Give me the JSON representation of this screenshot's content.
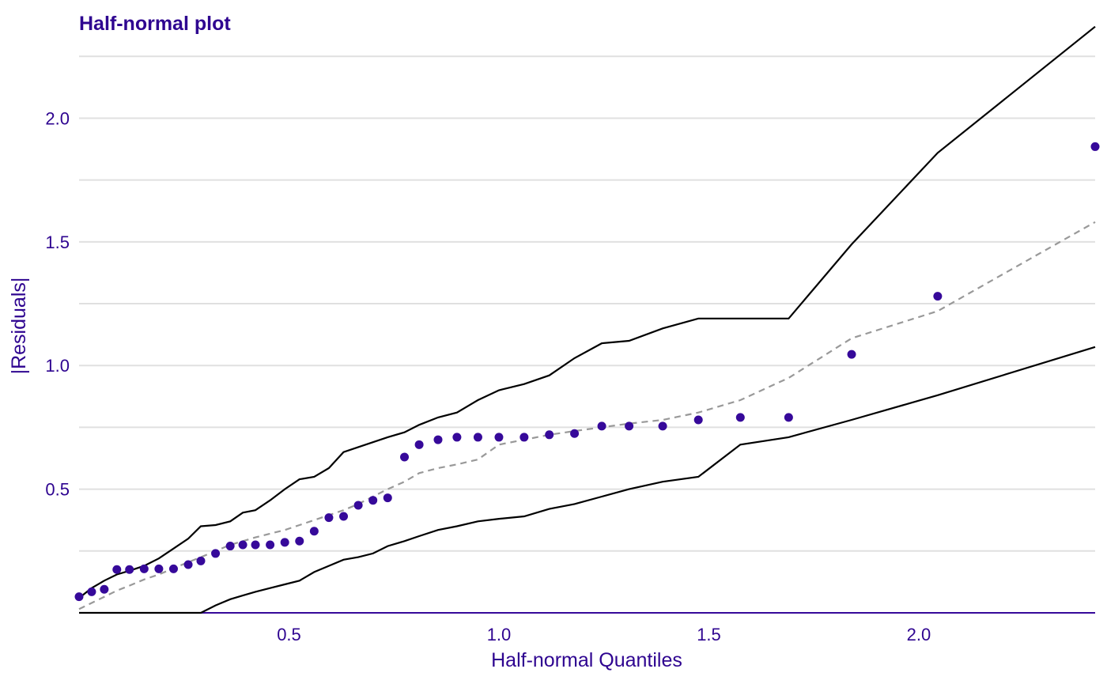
{
  "chart_data": {
    "type": "scatter",
    "title": "Half-normal plot",
    "xlabel": "Half-normal Quantiles",
    "ylabel": "|Residuals|",
    "xlim": [
      0.0,
      2.42
    ],
    "ylim": [
      0.0,
      2.35
    ],
    "x_ticks": [
      0.5,
      1.0,
      1.5,
      2.0
    ],
    "x_tick_labels": [
      "0.5",
      "1.0",
      "1.5",
      "2.0"
    ],
    "y_ticks": [
      0.5,
      1.0,
      1.5,
      2.0
    ],
    "y_tick_labels": [
      "0.5",
      "1.0",
      "1.5",
      "2.0"
    ],
    "y_minor_gridlines": [
      0.25,
      0.75,
      1.25,
      1.75,
      2.25
    ],
    "grid": true,
    "colors": {
      "title": "#2E0490",
      "points": "#36099A",
      "envelope": "#000000",
      "median": "#999999",
      "grid": "#e0e0e0",
      "axis_text": "#2E0490"
    },
    "series": [
      {
        "kind": "points",
        "x": [
          0.0,
          0.03,
          0.06,
          0.09,
          0.12,
          0.155,
          0.19,
          0.225,
          0.26,
          0.29,
          0.325,
          0.36,
          0.39,
          0.42,
          0.455,
          0.49,
          0.525,
          0.56,
          0.595,
          0.63,
          0.665,
          0.7,
          0.735,
          0.775,
          0.81,
          0.855,
          0.9,
          0.95,
          1.0,
          1.06,
          1.12,
          1.18,
          1.245,
          1.31,
          1.39,
          1.475,
          1.575,
          1.69,
          1.84,
          2.045,
          2.42
        ],
        "y": [
          0.065,
          0.085,
          0.095,
          0.175,
          0.175,
          0.178,
          0.178,
          0.178,
          0.195,
          0.21,
          0.24,
          0.27,
          0.275,
          0.275,
          0.275,
          0.285,
          0.29,
          0.33,
          0.385,
          0.39,
          0.435,
          0.455,
          0.465,
          0.63,
          0.68,
          0.7,
          0.71,
          0.71,
          0.71,
          0.71,
          0.72,
          0.725,
          0.755,
          0.755,
          0.755,
          0.78,
          0.79,
          0.79,
          1.045,
          1.28,
          1.885
        ]
      },
      {
        "kind": "upper-envelope",
        "x": [
          0.0,
          0.03,
          0.06,
          0.09,
          0.12,
          0.155,
          0.19,
          0.225,
          0.26,
          0.29,
          0.325,
          0.36,
          0.39,
          0.42,
          0.455,
          0.49,
          0.525,
          0.56,
          0.595,
          0.63,
          0.665,
          0.7,
          0.735,
          0.775,
          0.81,
          0.855,
          0.9,
          0.95,
          1.0,
          1.06,
          1.12,
          1.18,
          1.245,
          1.31,
          1.39,
          1.475,
          1.575,
          1.69,
          1.84,
          2.045,
          2.42
        ],
        "y": [
          0.06,
          0.1,
          0.13,
          0.155,
          0.17,
          0.19,
          0.22,
          0.26,
          0.3,
          0.35,
          0.355,
          0.37,
          0.405,
          0.415,
          0.455,
          0.5,
          0.54,
          0.55,
          0.585,
          0.65,
          0.67,
          0.69,
          0.71,
          0.73,
          0.76,
          0.79,
          0.81,
          0.86,
          0.9,
          0.925,
          0.96,
          1.03,
          1.09,
          1.1,
          1.15,
          1.19,
          1.19,
          1.19,
          1.49,
          1.86,
          2.37
        ]
      },
      {
        "kind": "median",
        "x": [
          0.0,
          0.03,
          0.06,
          0.09,
          0.12,
          0.155,
          0.19,
          0.225,
          0.26,
          0.29,
          0.325,
          0.36,
          0.39,
          0.42,
          0.455,
          0.49,
          0.525,
          0.56,
          0.595,
          0.63,
          0.665,
          0.7,
          0.735,
          0.775,
          0.81,
          0.855,
          0.9,
          0.95,
          1.0,
          1.06,
          1.12,
          1.18,
          1.245,
          1.31,
          1.39,
          1.475,
          1.575,
          1.69,
          1.84,
          2.045,
          2.42
        ],
        "y": [
          0.015,
          0.04,
          0.065,
          0.09,
          0.11,
          0.135,
          0.155,
          0.18,
          0.205,
          0.225,
          0.25,
          0.275,
          0.29,
          0.305,
          0.32,
          0.335,
          0.355,
          0.375,
          0.395,
          0.415,
          0.44,
          0.47,
          0.5,
          0.53,
          0.565,
          0.585,
          0.6,
          0.62,
          0.68,
          0.7,
          0.72,
          0.735,
          0.75,
          0.765,
          0.78,
          0.81,
          0.86,
          0.95,
          1.11,
          1.22,
          1.58
        ]
      },
      {
        "kind": "lower-envelope",
        "x": [
          0.0,
          0.03,
          0.06,
          0.09,
          0.12,
          0.155,
          0.19,
          0.225,
          0.26,
          0.29,
          0.325,
          0.36,
          0.39,
          0.42,
          0.455,
          0.49,
          0.525,
          0.56,
          0.595,
          0.63,
          0.665,
          0.7,
          0.735,
          0.775,
          0.81,
          0.855,
          0.9,
          0.95,
          1.0,
          1.06,
          1.12,
          1.18,
          1.245,
          1.31,
          1.39,
          1.475,
          1.575,
          1.69,
          1.84,
          2.045,
          2.42
        ],
        "y": [
          0.0,
          0.0,
          0.0,
          0.0,
          0.0,
          0.0,
          0.0,
          0.0,
          0.0,
          0.0,
          0.03,
          0.055,
          0.07,
          0.085,
          0.1,
          0.115,
          0.13,
          0.165,
          0.19,
          0.215,
          0.225,
          0.24,
          0.27,
          0.29,
          0.31,
          0.335,
          0.35,
          0.37,
          0.38,
          0.39,
          0.42,
          0.44,
          0.47,
          0.5,
          0.53,
          0.55,
          0.68,
          0.71,
          0.78,
          0.88,
          1.075
        ]
      }
    ]
  }
}
